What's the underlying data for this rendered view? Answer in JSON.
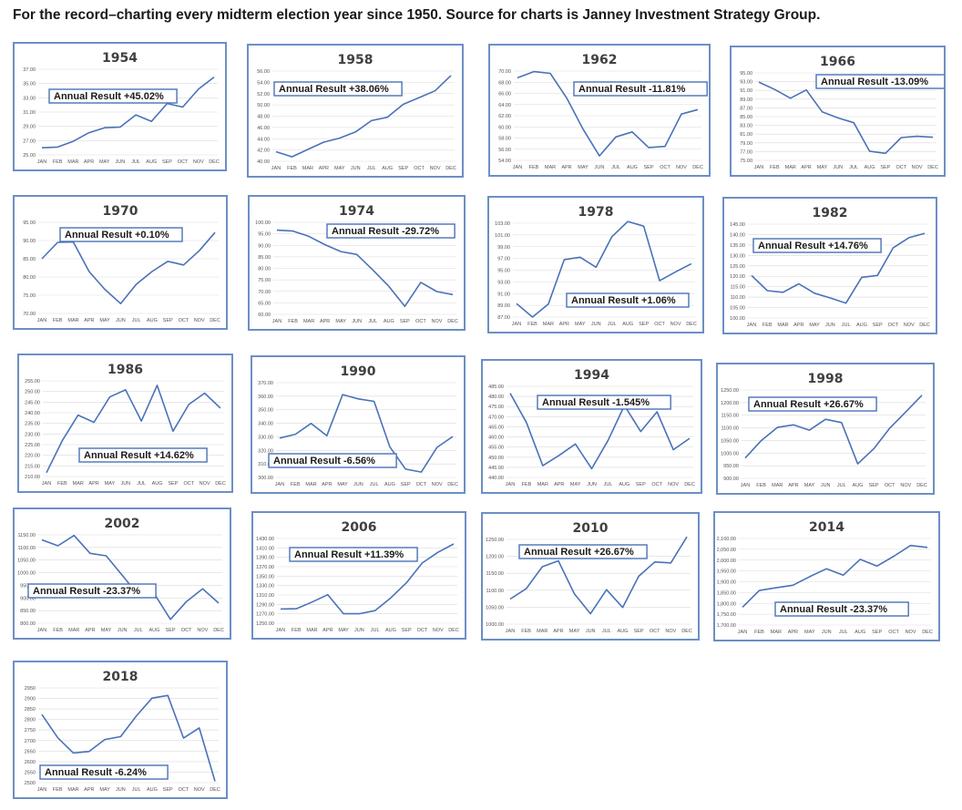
{
  "headline": "For the record–charting every midterm election year since 1950. Source for charts is Janney Investment Strategy Group.",
  "colors": {
    "line": "#4a72b8",
    "border": "#6c8fc4",
    "grid": "#d9d9d9"
  },
  "chart_data": [
    {
      "type": "line",
      "title": "1954",
      "annotation": "Annual Result +45.02%",
      "categories": [
        "JAN",
        "FEB",
        "MAR",
        "APR",
        "MAY",
        "JUN",
        "JUL",
        "AUG",
        "SEP",
        "OCT",
        "NOV",
        "DEC"
      ],
      "yticks": [
        "25.00",
        "27.00",
        "29.00",
        "31.00",
        "33.00",
        "35.00",
        "37.00"
      ],
      "ylim": [
        25,
        37
      ],
      "values": [
        26.0,
        26.1,
        26.9,
        28.1,
        28.8,
        28.9,
        30.6,
        29.7,
        32.2,
        31.7,
        34.2,
        35.9
      ]
    },
    {
      "type": "line",
      "title": "1958",
      "annotation": "Annual Result +38.06%",
      "categories": [
        "JAN",
        "FEB",
        "MAR",
        "APR",
        "MAY",
        "JUN",
        "JUL",
        "AUG",
        "SEP",
        "OCT",
        "NOV",
        "DEC"
      ],
      "yticks": [
        "40.00",
        "42.00",
        "44.00",
        "46.00",
        "48.00",
        "50.00",
        "52.00",
        "54.00",
        "56.00"
      ],
      "ylim": [
        40,
        56
      ],
      "values": [
        41.7,
        40.8,
        42.1,
        43.4,
        44.1,
        45.2,
        47.2,
        47.8,
        50.1,
        51.3,
        52.5,
        55.2
      ]
    },
    {
      "type": "line",
      "title": "1962",
      "annotation": "Annual Result  -11.81%",
      "categories": [
        "JAN",
        "FEB",
        "MAR",
        "APR",
        "MAY",
        "JUN",
        "JUL",
        "AUG",
        "SEP",
        "OCT",
        "NOV",
        "DEC"
      ],
      "yticks": [
        "54.00",
        "56.00",
        "58.00",
        "60.00",
        "62.00",
        "64.00",
        "66.00",
        "68.00",
        "70.00"
      ],
      "ylim": [
        54,
        70
      ],
      "values": [
        68.8,
        69.9,
        69.6,
        65.2,
        59.6,
        54.8,
        58.2,
        59.1,
        56.3,
        56.5,
        62.3,
        63.1
      ]
    },
    {
      "type": "line",
      "title": "1966",
      "annotation": "Annual Result  -13.09%",
      "categories": [
        "JAN",
        "FEB",
        "MAR",
        "APR",
        "MAY",
        "JUN",
        "JUL",
        "AUG",
        "SEP",
        "OCT",
        "NOV",
        "DEC"
      ],
      "yticks": [
        "75.00",
        "77.00",
        "79.00",
        "81.00",
        "83.00",
        "85.00",
        "87.00",
        "89.00",
        "91.00",
        "93.00",
        "95.00"
      ],
      "ylim": [
        75,
        95
      ],
      "values": [
        92.9,
        91.2,
        89.2,
        91.1,
        86.1,
        84.7,
        83.6,
        77.1,
        76.6,
        80.2,
        80.5,
        80.3
      ]
    },
    {
      "type": "line",
      "title": "1970",
      "annotation": "Annual Result +0.10%",
      "categories": [
        "JAN",
        "FEB",
        "MAR",
        "APR",
        "MAY",
        "JUN",
        "JUL",
        "AUG",
        "SEP",
        "OCT",
        "NOV",
        "DEC"
      ],
      "yticks": [
        "70.00",
        "75.00",
        "80.00",
        "85.00",
        "90.00",
        "95.00"
      ],
      "ylim": [
        70,
        95
      ],
      "values": [
        85.0,
        89.5,
        89.6,
        81.5,
        76.6,
        72.7,
        78.0,
        81.5,
        84.3,
        83.3,
        87.2,
        92.2
      ]
    },
    {
      "type": "line",
      "title": "1974",
      "annotation": "Annual Result -29.72%",
      "categories": [
        "JAN",
        "FEB",
        "MAR",
        "APR",
        "MAY",
        "JUN",
        "JUL",
        "AUG",
        "SEP",
        "OCT",
        "NOV",
        "DEC"
      ],
      "yticks": [
        "60.00",
        "65.00",
        "70.00",
        "75.00",
        "80.00",
        "85.00",
        "90.00",
        "95.00",
        "100.00"
      ],
      "ylim": [
        60,
        100
      ],
      "values": [
        96.6,
        96.2,
        93.9,
        90.3,
        87.3,
        86.0,
        79.3,
        72.2,
        63.5,
        73.9,
        69.9,
        68.6
      ]
    },
    {
      "type": "line",
      "title": "1978",
      "annotation": "Annual Result +1.06%",
      "categories": [
        "JAN",
        "FEB",
        "MAR",
        "APR",
        "MAY",
        "JUN",
        "JUL",
        "AUG",
        "SEP",
        "OCT",
        "NOV",
        "DEC"
      ],
      "yticks": [
        "87.00",
        "89.00",
        "91.00",
        "93.00",
        "95.00",
        "97.00",
        "99.00",
        "101.00",
        "103.00"
      ],
      "ylim": [
        87,
        103
      ],
      "values": [
        89.3,
        87.0,
        89.2,
        96.8,
        97.2,
        95.5,
        100.7,
        103.3,
        102.5,
        93.2,
        94.7,
        96.1
      ]
    },
    {
      "type": "line",
      "title": "1982",
      "annotation": "Annual Result +14.76%",
      "categories": [
        "JAN",
        "FEB",
        "MAR",
        "APR",
        "MAY",
        "JUN",
        "JUL",
        "AUG",
        "SEP",
        "OCT",
        "NOV",
        "DEC"
      ],
      "yticks": [
        "100.00",
        "105.00",
        "110.00",
        "115.00",
        "120.00",
        "125.00",
        "130.00",
        "135.00",
        "140.00",
        "145.00"
      ],
      "ylim": [
        100,
        145
      ],
      "values": [
        120.4,
        113.1,
        112.3,
        116.4,
        111.9,
        109.6,
        107.1,
        119.5,
        120.4,
        133.7,
        138.5,
        140.6
      ]
    },
    {
      "type": "line",
      "title": "1986",
      "annotation": "Annual Result +14.62%",
      "categories": [
        "JAN",
        "FEB",
        "MAR",
        "APR",
        "MAY",
        "JUN",
        "JUL",
        "AUG",
        "SEP",
        "OCT",
        "NOV",
        "DEC"
      ],
      "yticks": [
        "210.00",
        "215.00",
        "220.00",
        "225.00",
        "230.00",
        "235.00",
        "240.00",
        "245.00",
        "250.00",
        "255.00"
      ],
      "ylim": [
        210,
        255
      ],
      "values": [
        211.8,
        226.9,
        238.9,
        235.5,
        247.4,
        250.8,
        236.1,
        252.9,
        231.3,
        243.9,
        249.2,
        242.2
      ]
    },
    {
      "type": "line",
      "title": "1990",
      "annotation": "Annual Result  -6.56%",
      "categories": [
        "JAN",
        "FEB",
        "MAR",
        "APR",
        "MAY",
        "JUN",
        "JUL",
        "AUG",
        "SEP",
        "OCT",
        "NOV",
        "DEC"
      ],
      "yticks": [
        "300.00",
        "310.00",
        "320.00",
        "330.00",
        "340.00",
        "350.00",
        "360.00",
        "370.00"
      ],
      "ylim": [
        300,
        370
      ],
      "values": [
        329.1,
        331.9,
        339.9,
        330.8,
        361.2,
        358.0,
        356.2,
        322.6,
        306.1,
        304.0,
        322.2,
        330.2
      ]
    },
    {
      "type": "line",
      "title": "1994",
      "annotation": "Annual Result  -1.545%",
      "categories": [
        "JAN",
        "FEB",
        "MAR",
        "APR",
        "MAY",
        "JUN",
        "JUL",
        "AUG",
        "SEP",
        "OCT",
        "NOV",
        "DEC"
      ],
      "yticks": [
        "440.00",
        "445.00",
        "450.00",
        "455.00",
        "460.00",
        "465.00",
        "470.00",
        "475.00",
        "480.00",
        "485.00"
      ],
      "ylim": [
        440,
        485
      ],
      "values": [
        481.6,
        467.1,
        445.8,
        450.9,
        456.5,
        444.3,
        458.3,
        475.5,
        462.7,
        472.4,
        453.7,
        459.3
      ]
    },
    {
      "type": "line",
      "title": "1998",
      "annotation": "Annual Result +26.67%",
      "categories": [
        "JAN",
        "FEB",
        "MAR",
        "APR",
        "MAY",
        "JUN",
        "JUL",
        "AUG",
        "SEP",
        "OCT",
        "NOV",
        "DEC"
      ],
      "yticks": [
        "900.00",
        "950.00",
        "1000.00",
        "1050.00",
        "1100.00",
        "1150.00",
        "1200.00",
        "1250.00"
      ],
      "ylim": [
        900,
        1250
      ],
      "values": [
        980.3,
        1049.3,
        1101.8,
        1111.8,
        1090.8,
        1133.8,
        1120.7,
        957.3,
        1017.0,
        1098.7,
        1163.6,
        1229.2
      ]
    },
    {
      "type": "line",
      "title": "2002",
      "annotation": "Annual Result -23.37%",
      "categories": [
        "JAN",
        "FEB",
        "MAR",
        "APR",
        "MAY",
        "JUN",
        "JUL",
        "AUG",
        "SEP",
        "OCT",
        "NOV",
        "DEC"
      ],
      "yticks": [
        "800.00",
        "850.00",
        "900.00",
        "950.00",
        "1000.00",
        "1050.00",
        "1100.00",
        "1150.00"
      ],
      "ylim": [
        800,
        1150
      ],
      "values": [
        1130.2,
        1106.7,
        1147.4,
        1076.9,
        1067.1,
        989.8,
        911.6,
        916.1,
        815.3,
        885.8,
        936.3,
        879.8
      ]
    },
    {
      "type": "line",
      "title": "2006",
      "annotation": "Annual Result +11.39%",
      "categories": [
        "JAN",
        "FEB",
        "MAR",
        "APR",
        "MAY",
        "JUN",
        "JUL",
        "AUG",
        "SEP",
        "OCT",
        "NOV",
        "DEC"
      ],
      "yticks": [
        "1250.00",
        "1270.00",
        "1290.00",
        "1310.00",
        "1330.00",
        "1350.00",
        "1370.00",
        "1390.00",
        "1410.00",
        "1430.00"
      ],
      "ylim": [
        1250,
        1430
      ],
      "values": [
        1280.1,
        1280.7,
        1294.9,
        1310.6,
        1270.1,
        1270.2,
        1276.7,
        1303.8,
        1335.9,
        1377.9,
        1400.6,
        1418.3
      ]
    },
    {
      "type": "line",
      "title": "2010",
      "annotation": "Annual Result +26.67%",
      "categories": [
        "JAN",
        "FEB",
        "MAR",
        "APR",
        "MAY",
        "JUN",
        "JUL",
        "AUG",
        "SEP",
        "OCT",
        "NOV",
        "DEC"
      ],
      "yticks": [
        "1000.00",
        "1050.00",
        "1100.00",
        "1150.00",
        "1200.00",
        "1250.00"
      ],
      "ylim": [
        1000,
        1250
      ],
      "values": [
        1073.9,
        1104.5,
        1169.4,
        1186.7,
        1089.4,
        1030.7,
        1101.6,
        1049.3,
        1141.2,
        1183.3,
        1180.6,
        1257.6
      ]
    },
    {
      "type": "line",
      "title": "2014",
      "annotation": "Annual Result  -23.37%",
      "categories": [
        "JAN",
        "FEB",
        "MAR",
        "APR",
        "MAY",
        "JUN",
        "JUL",
        "AUG",
        "SEP",
        "OCT",
        "NOV",
        "DEC"
      ],
      "yticks": [
        "1,700.00",
        "1,750.00",
        "1,800.00",
        "1,850.00",
        "1,900.00",
        "1,950.00",
        "2,000.00",
        "2,050.00",
        "2,100.00"
      ],
      "ylim": [
        1700,
        2100
      ],
      "values": [
        1782.6,
        1859.5,
        1872.3,
        1883.9,
        1923.6,
        1960.2,
        1930.7,
        2003.4,
        1972.3,
        2018.1,
        2067.6,
        2058.9
      ]
    },
    {
      "type": "line",
      "title": "2018",
      "annotation": "Annual Result  -6.24%",
      "categories": [
        "JAN",
        "FEB",
        "MAR",
        "APR",
        "MAY",
        "JUN",
        "JUL",
        "AUG",
        "SEP",
        "OCT",
        "NOV",
        "DEC"
      ],
      "yticks": [
        "2500",
        "2550",
        "2600",
        "2650",
        "2700",
        "2750",
        "2800",
        "2850",
        "2900",
        "2950"
      ],
      "ylim": [
        2500,
        2950
      ],
      "values": [
        2823.8,
        2713.8,
        2640.9,
        2648.1,
        2705.3,
        2718.4,
        2816.3,
        2901.5,
        2913.9,
        2711.7,
        2760.2,
        2506.9
      ]
    }
  ]
}
